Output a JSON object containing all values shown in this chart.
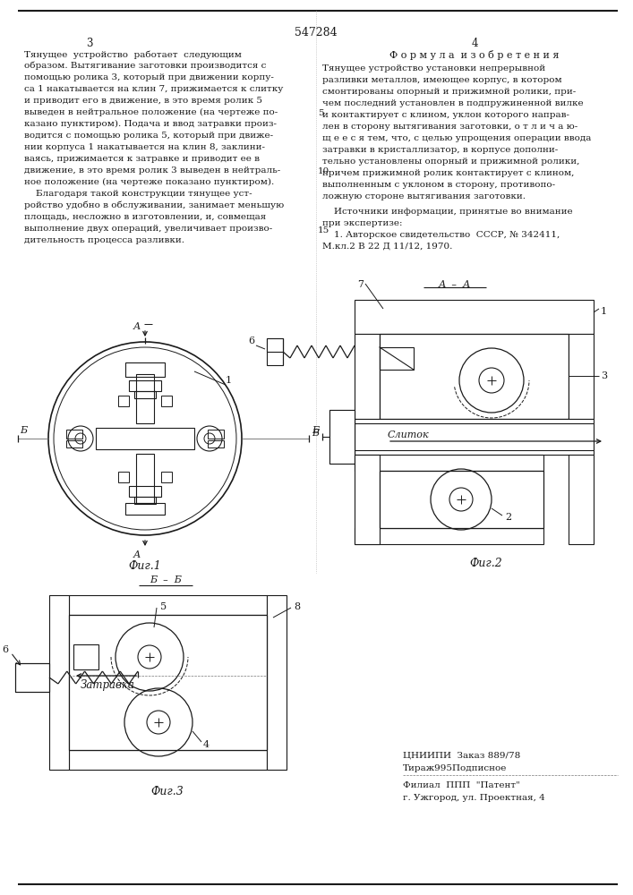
{
  "bg_color": "#ffffff",
  "text_color": "#1a1a1a",
  "patent_number": "547284",
  "page_left": "3",
  "page_right": "4",
  "left_column_lines": [
    "Тянущее  устройство  работает  следующим",
    "образом. Вытягивание заготовки производится с",
    "помощью ролика 3, который при движении корпу-",
    "са 1 накатывается на клин 7, прижимается к слитку",
    "и приводит его в движение, в это время ролик 5",
    "выведен в нейтральное положение (на чертеже по-",
    "казано пунктиром). Подача и ввод затравки произ-",
    "водится с помощью ролика 5, который при движе-",
    "нии корпуса 1 накатывается на клин 8, заклини-",
    "ваясь, прижимается к затравке и приводит ее в",
    "движение, в это время ролик 3 выведен в нейтраль-",
    "ное положение (на чертеже показано пунктиром).",
    "    Благодаря такой конструкции тянущее уст-",
    "ройство удобно в обслуживании, занимает меньшую",
    "площадь, несложно в изготовлении, и, совмещая",
    "выполнение двух операций, увеличивает произво-",
    "дительность процесса разливки."
  ],
  "right_col_title": "Ф о р м у л а  и з о б р е т е н и я",
  "right_col_lines": [
    "Тянущее устройство установки непрерывной",
    "разливки металлов, имеющее корпус, в котором",
    "смонтированы опорный и прижимной ролики, при-",
    "чем последний установлен в подпружиненной вилке",
    "и контактирует с клином, уклон которого направ-",
    "лен в сторону вытягивания заготовки, о т л и ч а ю-",
    "щ е е с я тем, что, с целью упрощения операции ввода",
    "затравки в кристаллизатор, в корпусе дополни-",
    "тельно установлены опорный и прижимной ролики,",
    "причем прижимной ролик контактирует с клином,",
    "выполненным с уклоном в сторону, противопо-",
    "ложную стороне вытягивания заготовки."
  ],
  "sources_lines": [
    "    Источники информации, принятые во внимание",
    "при экспертизе:",
    "    1. Авторское свидетельство  СССР, № 342411,",
    "М.кл.2 В 22 Д 11/12, 1970."
  ],
  "publisher_lines": [
    "ЦНИИПИ  Заказ 889/78",
    "Тираж995Подписное",
    "Филиал  ППП  \"Патент\"",
    "г. Ужгород, ул. Проектная, 4"
  ],
  "hatch_color": "#888888",
  "line_color": "#1a1a1a"
}
